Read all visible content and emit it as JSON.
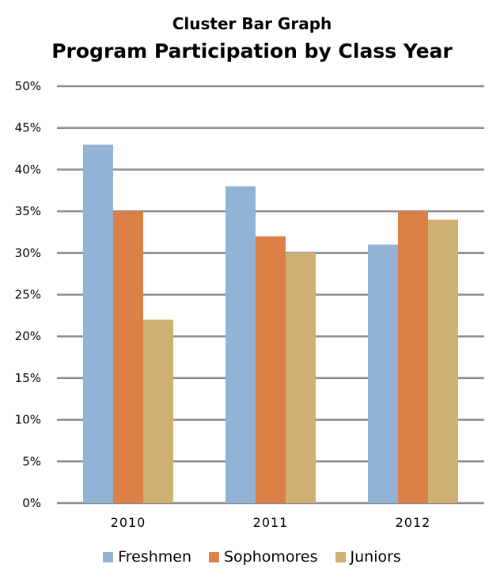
{
  "chart_data": {
    "type": "bar",
    "subtitle": "Cluster Bar Graph",
    "title": "Program Participation by Class Year",
    "xlabel": "",
    "ylabel": "",
    "categories": [
      "2010",
      "2011",
      "2012"
    ],
    "series": [
      {
        "name": "Freshmen",
        "color": "#93b3d4",
        "values": [
          43,
          38,
          31
        ]
      },
      {
        "name": "Sophomores",
        "color": "#dd8047",
        "values": [
          35,
          32,
          35
        ]
      },
      {
        "name": "Juniors",
        "color": "#cfb072",
        "values": [
          22,
          30,
          34
        ]
      }
    ],
    "ylim": [
      0,
      50
    ],
    "yticks": [
      0,
      5,
      10,
      15,
      20,
      25,
      30,
      35,
      40,
      45,
      50
    ],
    "ytick_labels": [
      "0%",
      "5%",
      "10%",
      "15%",
      "20%",
      "25%",
      "30%",
      "35%",
      "40%",
      "45%",
      "50%"
    ],
    "grid": true,
    "legend_position": "bottom"
  }
}
